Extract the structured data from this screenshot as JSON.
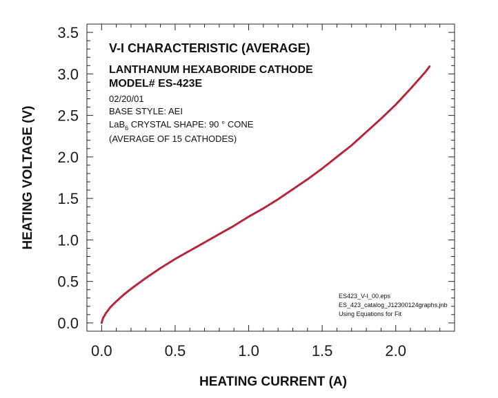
{
  "chart_data": {
    "type": "line",
    "title": "V-I CHARACTERISTIC  (AVERAGE)",
    "subtitle_lines": [
      "LANTHANUM HEXABORIDE CATHODE",
      "MODEL# ES-423E"
    ],
    "info_lines": [
      "02/20/01",
      "BASE STYLE: AEI"
    ],
    "crystal_line": {
      "prefix": "LaB",
      "subscript": "6",
      "suffix": " CRYSTAL SHAPE:  90 ° CONE"
    },
    "average_line": "(AVERAGE OF 15 CATHODES)",
    "footnote_lines": [
      "ES423_V-I_00.eps",
      "ES_423_catalog_J12300124graphs.jnb",
      "Using Equations for Fit"
    ],
    "xlabel": "HEATING CURRENT (A)",
    "ylabel": "HEATING VOLTAGE (V)",
    "xlim": [
      -0.1,
      2.4
    ],
    "ylim": [
      -0.1,
      3.6
    ],
    "xticks": [
      "0.0",
      "0.5",
      "1.0",
      "1.5",
      "2.0"
    ],
    "yticks": [
      "0.0",
      "0.5",
      "1.0",
      "1.5",
      "2.0",
      "2.5",
      "3.0",
      "3.5"
    ],
    "grid": false,
    "legend": "none",
    "series_color": "#b5253d",
    "title_color": "#c0203c",
    "series": [
      {
        "x": [
          0.0,
          0.01,
          0.03,
          0.06,
          0.1,
          0.15,
          0.2,
          0.3,
          0.4,
          0.5,
          0.6,
          0.7,
          0.8,
          0.9,
          1.0,
          1.1,
          1.2,
          1.3,
          1.4,
          1.5,
          1.6,
          1.7,
          1.8,
          1.9,
          2.0,
          2.1,
          2.2,
          2.23
        ],
        "y": [
          0.0,
          0.06,
          0.12,
          0.19,
          0.26,
          0.34,
          0.41,
          0.54,
          0.66,
          0.77,
          0.87,
          0.97,
          1.07,
          1.17,
          1.28,
          1.38,
          1.49,
          1.61,
          1.73,
          1.86,
          2.0,
          2.14,
          2.3,
          2.46,
          2.63,
          2.82,
          3.02,
          3.09
        ]
      }
    ]
  }
}
